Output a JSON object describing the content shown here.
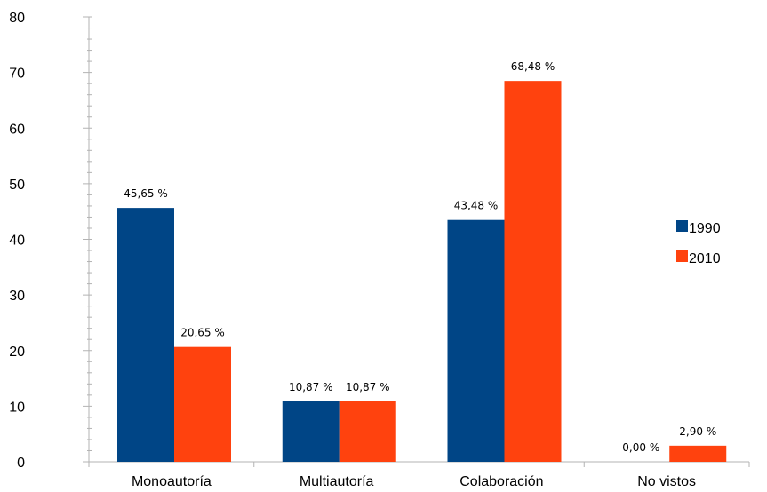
{
  "chart_data": {
    "type": "bar",
    "categories": [
      "Monoautoría",
      "Multiautoría",
      "Colaboración",
      "No vistos"
    ],
    "series": [
      {
        "name": "1990",
        "color": "#004586",
        "values": [
          45.65,
          10.87,
          43.48,
          0.0
        ],
        "labels": [
          "45,65 %",
          "10,87 %",
          "43,48 %",
          "0,00 %"
        ]
      },
      {
        "name": "2010",
        "color": "#ff420e",
        "values": [
          20.65,
          10.87,
          68.48,
          2.9
        ],
        "labels": [
          "20,65 %",
          "10,87 %",
          "68,48 %",
          "2,90 %"
        ]
      }
    ],
    "y_ticks": [
      "0",
      "10",
      "20",
      "30",
      "40",
      "50",
      "60",
      "70",
      "80"
    ],
    "ylim": [
      0,
      80
    ],
    "grid": false,
    "legend_position": "right"
  }
}
